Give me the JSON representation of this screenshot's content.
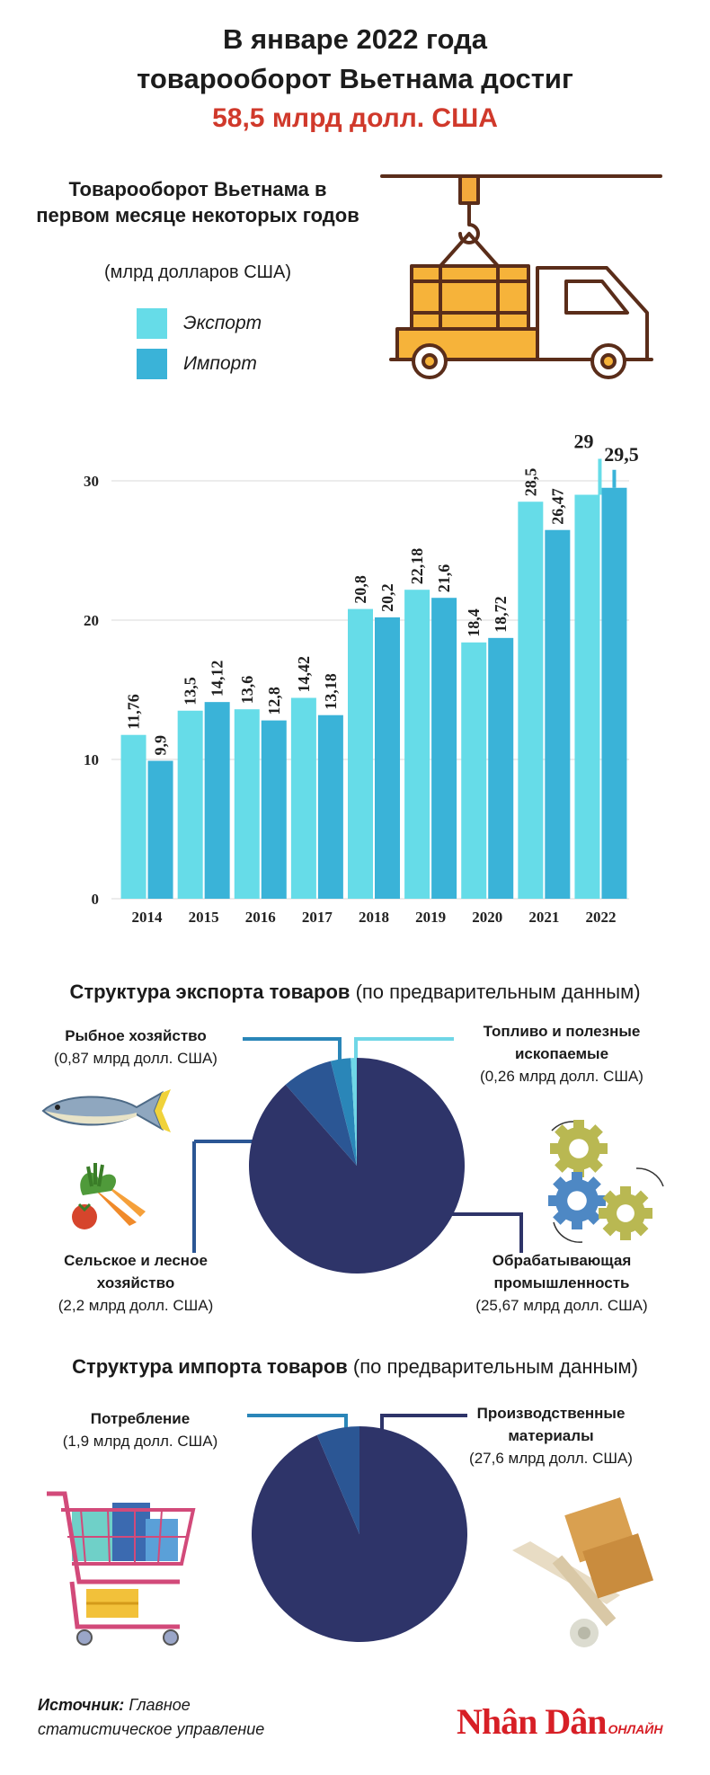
{
  "header": {
    "line1": "В январе 2022 года",
    "line2": "товарооборот Вьетнама достиг",
    "highlight": "58,5 млрд долл. США"
  },
  "chart_data": {
    "type": "bar",
    "title": "Товарооборот Вьетнама в первом месяце некоторых годов",
    "units": "(млрд долларов США)",
    "categories": [
      "2014",
      "2015",
      "2016",
      "2017",
      "2018",
      "2019",
      "2020",
      "2021",
      "2022"
    ],
    "series": [
      {
        "name": "Экспорт",
        "color": "#66dce8",
        "values": [
          11.76,
          13.5,
          13.6,
          14.42,
          20.8,
          22.18,
          18.4,
          28.5,
          29
        ]
      },
      {
        "name": "Импорт",
        "color": "#3ab3d8",
        "values": [
          9.9,
          14.12,
          12.8,
          13.18,
          20.2,
          21.6,
          18.72,
          26.47,
          29.5
        ]
      }
    ],
    "value_labels": {
      "export": [
        "11,76",
        "13,5",
        "13,6",
        "14,42",
        "20,8",
        "22,18",
        "18,4",
        "28,5",
        "29"
      ],
      "import": [
        "9,9",
        "14,12",
        "12,8",
        "13,18",
        "20,2",
        "21,6",
        "18,72",
        "26,47",
        "29,5"
      ]
    },
    "yticks": [
      0,
      10,
      20,
      30
    ],
    "ylim": [
      0,
      30
    ],
    "grid": true,
    "legend": "top-left"
  },
  "export_structure": {
    "title_bold": "Структура  экспорта товаров",
    "title_rest": " (по предварительным данным)",
    "slices": [
      {
        "name": "Обрабатывающая промышленность",
        "name_l1": "Обрабатывающая",
        "name_l2": "промышленность",
        "value_label": "(25,67 млрд долл. США)",
        "value": 25.67,
        "color": "#2e3469"
      },
      {
        "name": "Сельское и лесное хозяйство",
        "name_l1": "Сельское и лесное",
        "name_l2": "хозяйство",
        "value_label": "(2,2 млрд долл. США)",
        "value": 2.2,
        "color": "#2b5694"
      },
      {
        "name": "Рыбное хозяйство",
        "name_l1": "Рыбное хозяйство",
        "value_label": "(0,87 млрд долл. США)",
        "value": 0.87,
        "color": "#2a86b8"
      },
      {
        "name": "Топливо и полезные ископаемые",
        "name_l1": "Топливо и полезные",
        "name_l2": "ископаемые",
        "value_label": "(0,26 млрд долл. США)",
        "value": 0.26,
        "color": "#6fd6e6"
      }
    ]
  },
  "import_structure": {
    "title_bold": "Структура импорта товаров",
    "title_rest": " (по предварительным данным)",
    "slices": [
      {
        "name": "Производственные материалы",
        "name_l1": "Производственные",
        "name_l2": "материалы",
        "value_label": "(27,6 млрд долл. США)",
        "value": 27.6,
        "color": "#2e3469"
      },
      {
        "name": "Потребление",
        "name_l1": "Потребление",
        "value_label": "(1,9 млрд долл. США)",
        "value": 1.9,
        "color": "#2b5694"
      }
    ]
  },
  "source": {
    "label": "Источник:",
    "line1": " Главное",
    "line2": "статистическое управление"
  },
  "logo": {
    "main": "Nhân Dân",
    "sub": "ОНЛАЙН"
  }
}
